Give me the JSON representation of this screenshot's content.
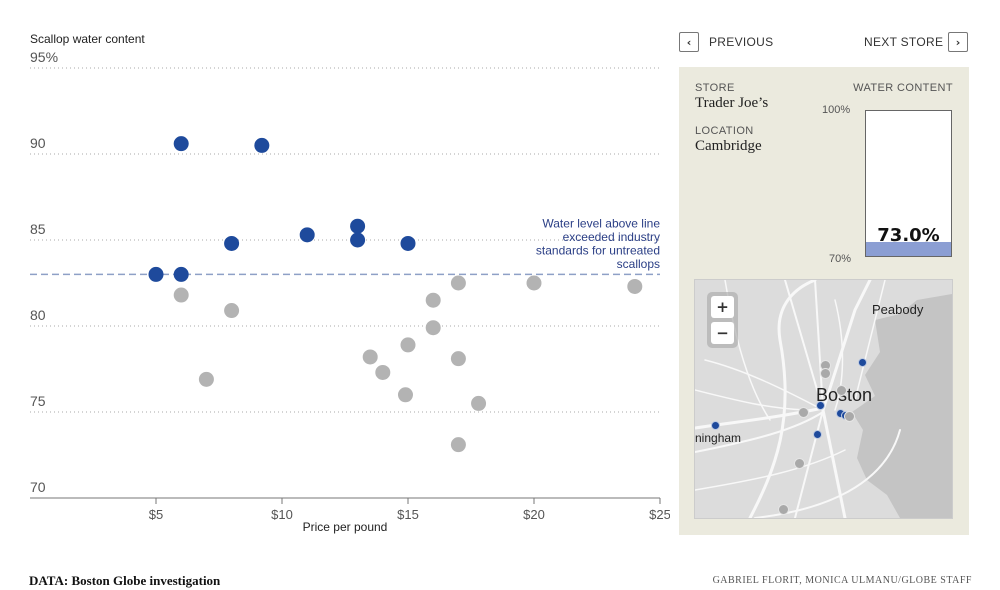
{
  "chart_data": {
    "type": "scatter",
    "title": "Scallop water content",
    "xlabel": "Price per pound",
    "ylabel": "",
    "xlim": [
      0,
      25
    ],
    "ylim": [
      70,
      95
    ],
    "x_ticks": [
      5,
      10,
      15,
      20,
      25
    ],
    "x_tick_labels": [
      "$5",
      "$10",
      "$15",
      "$20",
      "$25"
    ],
    "y_ticks": [
      70,
      75,
      80,
      85,
      90,
      95
    ],
    "y_tick_labels": [
      "70",
      "75",
      "80",
      "85",
      "90",
      "95%"
    ],
    "grid": "horizontal dotted",
    "threshold": {
      "y": 83,
      "label": [
        "Water level above line",
        "exceeded industry",
        "standards for untreated",
        "scallops"
      ]
    },
    "series": [
      {
        "color": "#1e4a9c",
        "points": [
          [
            6,
            90.6
          ],
          [
            9.2,
            90.5
          ],
          [
            11,
            85.3
          ],
          [
            13,
            85.8
          ],
          [
            13,
            85.0
          ],
          [
            8,
            84.8
          ],
          [
            15,
            84.8
          ],
          [
            5,
            83.0
          ],
          [
            6,
            83.0
          ]
        ]
      },
      {
        "color": "#b3b3b3",
        "points": [
          [
            6,
            81.8
          ],
          [
            8,
            80.9
          ],
          [
            7,
            76.9
          ],
          [
            13.5,
            78.2
          ],
          [
            14,
            77.3
          ],
          [
            15,
            78.9
          ],
          [
            14.9,
            76.0
          ],
          [
            16,
            81.5
          ],
          [
            16,
            79.9
          ],
          [
            17,
            82.5
          ],
          [
            17,
            78.1
          ],
          [
            17,
            73.1
          ],
          [
            17.8,
            75.5
          ],
          [
            20,
            82.5
          ],
          [
            24,
            82.3
          ]
        ]
      }
    ]
  },
  "nav": {
    "prev_label": "PREVIOUS",
    "next_label": "NEXT STORE",
    "prev_icon": "‹",
    "next_icon": "›"
  },
  "panel": {
    "store_label": "STORE",
    "store_value": "Trader Joe’s",
    "location_label": "LOCATION",
    "location_value": "Cambridge",
    "water_label": "WATER CONTENT",
    "gauge_top": "100%",
    "gauge_bottom": "70%",
    "gauge_min": 70,
    "gauge_max": 100,
    "gauge_value": 73.0,
    "gauge_value_text": "73.0%",
    "fill_color": "#8b9ed3"
  },
  "map": {
    "labels": {
      "peabody": "Peabody",
      "boston": "Boston",
      "framingham": "ningham"
    },
    "zoom_in": "+",
    "zoom_out": "−",
    "marker_blue": "#1e4a9c",
    "marker_gray": "#a9a9a9"
  },
  "footer": {
    "source": "DATA: Boston Globe investigation",
    "credit": "GABRIEL FLORIT, MONICA ULMANU/GLOBE STAFF"
  }
}
